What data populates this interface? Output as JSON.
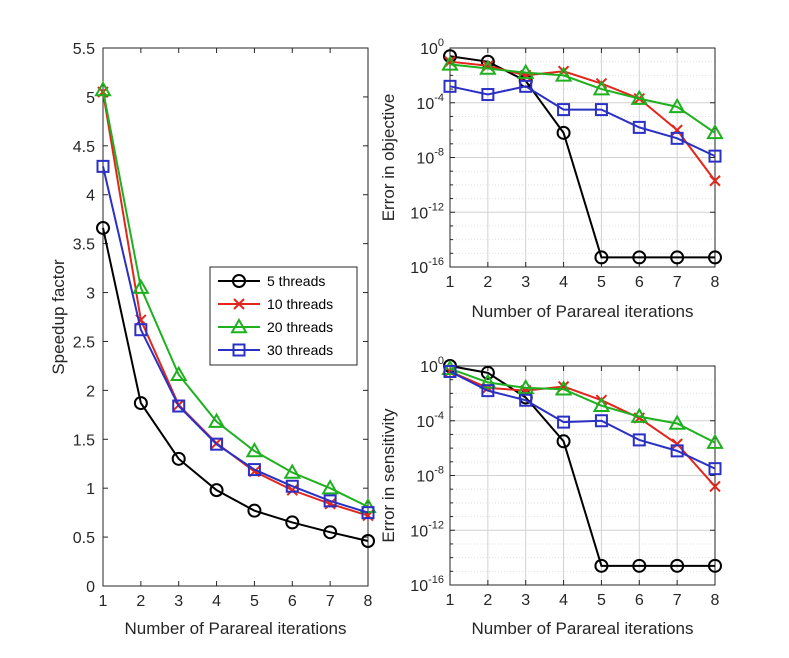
{
  "chart_data": [
    {
      "id": "speedup",
      "type": "line",
      "title": "",
      "xlabel": "Number of Parareal iterations",
      "ylabel": "Speedup factor",
      "x": [
        1,
        2,
        3,
        4,
        5,
        6,
        7,
        8
      ],
      "xlim": [
        1,
        8
      ],
      "ylim": [
        0,
        5.5
      ],
      "yscale": "linear",
      "xticks": [
        "1",
        "2",
        "3",
        "4",
        "5",
        "6",
        "7",
        "8"
      ],
      "yticks": [
        "0",
        "0.5",
        "1",
        "1.5",
        "2",
        "2.5",
        "3",
        "3.5",
        "4",
        "4.5",
        "5",
        "5.5"
      ],
      "grid": false,
      "legend": "middle-right",
      "series": [
        {
          "name": "5 threads",
          "color": "#000000",
          "marker": "circle",
          "values": [
            3.66,
            1.87,
            1.3,
            0.98,
            0.77,
            0.65,
            0.55,
            0.46
          ]
        },
        {
          "name": "10 threads",
          "color": "#e3261b",
          "marker": "x",
          "values": [
            5.05,
            2.72,
            1.85,
            1.46,
            1.17,
            0.98,
            0.84,
            0.72
          ]
        },
        {
          "name": "20 threads",
          "color": "#1fb01f",
          "marker": "triangle",
          "values": [
            5.07,
            3.05,
            2.16,
            1.68,
            1.38,
            1.16,
            1.0,
            0.81
          ]
        },
        {
          "name": "30 threads",
          "color": "#2b30c4",
          "marker": "square",
          "values": [
            4.29,
            2.62,
            1.84,
            1.45,
            1.19,
            1.02,
            0.87,
            0.75
          ]
        }
      ]
    },
    {
      "id": "objective",
      "type": "line",
      "title": "",
      "xlabel": "Number of Parareal iterations",
      "ylabel": "Error in objective",
      "x": [
        1,
        2,
        3,
        4,
        5,
        6,
        7,
        8
      ],
      "xlim": [
        1,
        8
      ],
      "yscale": "log",
      "ylim_exp": [
        -16,
        0
      ],
      "xticks": [
        "1",
        "2",
        "3",
        "4",
        "5",
        "6",
        "7",
        "8"
      ],
      "yticks": [
        {
          "exp": 0,
          "base": "10",
          "power": "0"
        },
        {
          "exp": -4,
          "base": "10",
          "power": "-4"
        },
        {
          "exp": -8,
          "base": "10",
          "power": "-8"
        },
        {
          "exp": -12,
          "base": "10",
          "power": "-12"
        },
        {
          "exp": -16,
          "base": "10",
          "power": "-16"
        }
      ],
      "grid": "minor-dotted",
      "series": [
        {
          "name": "5 threads",
          "color": "#000000",
          "marker": "circle",
          "log10_values": [
            -0.6,
            -1.0,
            -2.4,
            -6.2,
            -15.3,
            -15.3,
            -15.3,
            -15.3
          ]
        },
        {
          "name": "10 threads",
          "color": "#e3261b",
          "marker": "x",
          "log10_values": [
            -1.0,
            -1.3,
            -2.0,
            -1.7,
            -2.6,
            -3.7,
            -6.0,
            -9.7
          ]
        },
        {
          "name": "20 threads",
          "color": "#1fb01f",
          "marker": "triangle",
          "log10_values": [
            -1.2,
            -1.5,
            -1.8,
            -2.0,
            -3.0,
            -3.7,
            -4.3,
            -6.2
          ]
        },
        {
          "name": "30 threads",
          "color": "#2b30c4",
          "marker": "square",
          "log10_values": [
            -2.8,
            -3.4,
            -2.8,
            -4.5,
            -4.5,
            -5.8,
            -6.6,
            -7.9
          ]
        }
      ]
    },
    {
      "id": "sensitivity",
      "type": "line",
      "title": "",
      "xlabel": "Number of Parareal iterations",
      "ylabel": "Error in sensitivity",
      "x": [
        1,
        2,
        3,
        4,
        5,
        6,
        7,
        8
      ],
      "xlim": [
        1,
        8
      ],
      "yscale": "log",
      "ylim_exp": [
        -16,
        0
      ],
      "xticks": [
        "1",
        "2",
        "3",
        "4",
        "5",
        "6",
        "7",
        "8"
      ],
      "yticks": [
        {
          "exp": 0,
          "base": "10",
          "power": "0"
        },
        {
          "exp": -4,
          "base": "10",
          "power": "-4"
        },
        {
          "exp": -8,
          "base": "10",
          "power": "-8"
        },
        {
          "exp": -12,
          "base": "10",
          "power": "-12"
        },
        {
          "exp": -16,
          "base": "10",
          "power": "-16"
        }
      ],
      "grid": "minor-dotted",
      "series": [
        {
          "name": "5 threads",
          "color": "#000000",
          "marker": "circle",
          "log10_values": [
            0.0,
            -0.5,
            -2.3,
            -5.5,
            -14.6,
            -14.6,
            -14.6,
            -14.6
          ]
        },
        {
          "name": "10 threads",
          "color": "#e3261b",
          "marker": "x",
          "log10_values": [
            -0.4,
            -1.6,
            -1.8,
            -1.5,
            -2.5,
            -3.8,
            -5.7,
            -8.8
          ]
        },
        {
          "name": "20 threads",
          "color": "#1fb01f",
          "marker": "triangle",
          "log10_values": [
            -0.2,
            -1.2,
            -1.6,
            -1.7,
            -2.9,
            -3.7,
            -4.2,
            -5.6
          ]
        },
        {
          "name": "30 threads",
          "color": "#2b30c4",
          "marker": "square",
          "log10_values": [
            -0.4,
            -1.8,
            -2.5,
            -4.1,
            -4.0,
            -5.4,
            -6.2,
            -7.5
          ]
        }
      ]
    }
  ],
  "legend": {
    "entries": [
      "5 threads",
      "10 threads",
      "20 threads",
      "30 threads"
    ]
  }
}
